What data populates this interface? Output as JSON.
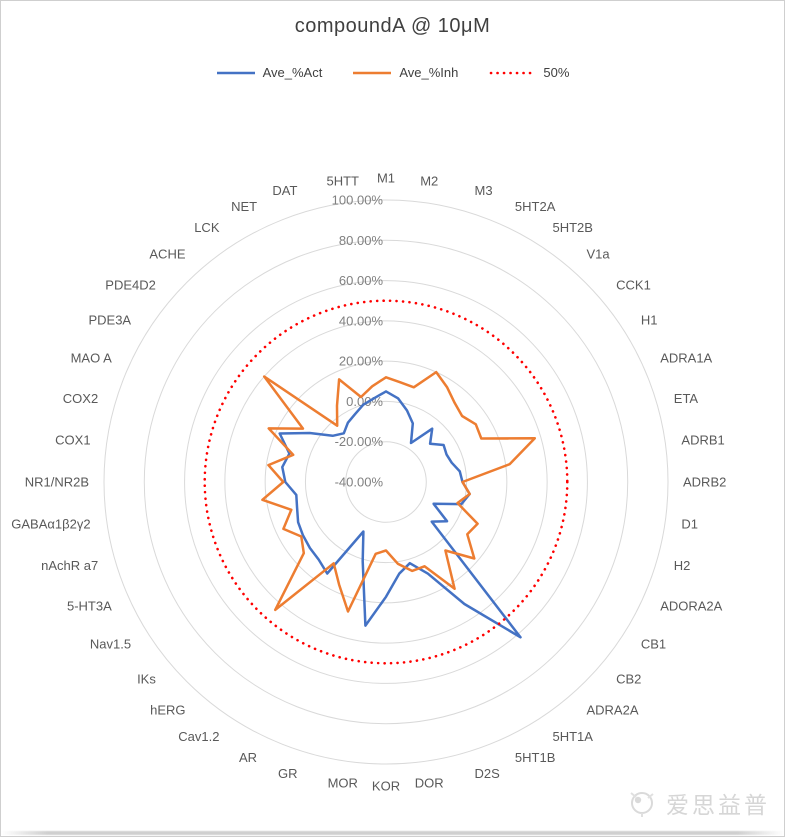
{
  "chart_data": {
    "type": "radar",
    "title": "compoundA @ 10μM",
    "legend_position": "top",
    "grid": true,
    "axis": {
      "min": -40,
      "max": 100,
      "step": 20,
      "tick_labels": [
        "100.00%",
        "80.00%",
        "60.00%",
        "40.00%",
        "20.00%",
        "0.00%",
        "-20.00%",
        "-40.00%"
      ],
      "tick_values": [
        100,
        80,
        60,
        40,
        20,
        0,
        -20,
        -40
      ]
    },
    "reference": {
      "label": "50%",
      "value": 50,
      "color": "#FF0000"
    },
    "categories": [
      "M1",
      "M2",
      "M3",
      "5HT2A",
      "5HT2B",
      "V1a",
      "CCK1",
      "H1",
      "ADRA1A",
      "ETA",
      "ADRB1",
      "ADRB2",
      "D1",
      "H2",
      "ADORA2A",
      "CB1",
      "CB2",
      "ADRA2A",
      "5HT1A",
      "5HT1B",
      "D2S",
      "DOR",
      "KOR",
      "MOR",
      "GR",
      "AR",
      "Cav1.2",
      "hERG",
      "IKs",
      "Nav1.5",
      "5-HT3A",
      "nAchR a7",
      "GABAα1β2γ2",
      "NR1/NR2B",
      "COX1",
      "COX2",
      "MAO A",
      "PDE3A",
      "PDE4D2",
      "ACHE",
      "LCK",
      "NET",
      "DAT",
      "5HTT"
    ],
    "series": [
      {
        "name": "Ave_%Act",
        "color": "#4472C4",
        "values": [
          5,
          2,
          -3,
          -8,
          -17,
          -5,
          -11,
          -6,
          -7,
          -6,
          -3,
          -2,
          2,
          -1,
          -14,
          -4,
          -10,
          62,
          32,
          10,
          2,
          6,
          17,
          32,
          1,
          -13,
          14,
          11,
          10,
          9,
          8,
          6,
          5,
          10,
          12,
          10,
          18,
          5,
          -5,
          -8,
          -5,
          -3,
          0,
          2
        ]
      },
      {
        "name": "Ave_%Inh",
        "color": "#ED7D31",
        "values": [
          12,
          10,
          9,
          20,
          16,
          12,
          10,
          13,
          12,
          37,
          22,
          -2,
          2,
          -3,
          10,
          8,
          18,
          5,
          23,
          6,
          6,
          1,
          -6,
          -4,
          27,
          16,
          8,
          44,
          14,
          10,
          16,
          9,
          22,
          11,
          19,
          8,
          24,
          9,
          40,
          -3,
          5,
          16,
          4,
          8
        ]
      }
    ]
  },
  "watermark": {
    "text": "爱思益普"
  },
  "styles": {
    "accent_blue": "#4472C4",
    "accent_orange": "#ED7D31",
    "reference_red": "#FF0000",
    "grid_line": "#D9D9D9",
    "tick_text": "#808080",
    "category_text": "#595959",
    "title_text": "#404040",
    "watermark_text": "#D6D6D6"
  }
}
